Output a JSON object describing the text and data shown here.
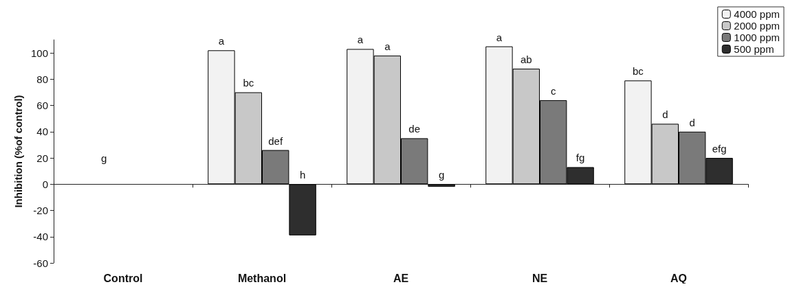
{
  "chart_data": {
    "type": "bar",
    "ylabel": "Inhibition (%of control)",
    "categories": [
      "Control",
      "Methanol",
      "AE",
      "NE",
      "AQ"
    ],
    "series": [
      {
        "name": "4000 ppm",
        "color": "#f2f2f2",
        "values": [
          null,
          102,
          103,
          105,
          79
        ],
        "value_labels": [
          null,
          "a",
          "a",
          "a",
          "bc"
        ]
      },
      {
        "name": "2000 ppm",
        "color": "#c8c8c8",
        "values": [
          null,
          70,
          98,
          88,
          46
        ],
        "value_labels": [
          null,
          "bc",
          "a",
          "ab",
          "d"
        ]
      },
      {
        "name": "1000 ppm",
        "color": "#7a7a7a",
        "values": [
          null,
          26,
          35,
          64,
          40
        ],
        "value_labels": [
          null,
          "def",
          "de",
          "c",
          "d"
        ]
      },
      {
        "name": "500 ppm",
        "color": "#2e2e2e",
        "values": [
          null,
          -39,
          -2,
          13,
          20
        ],
        "value_labels": [
          null,
          "h",
          "g",
          "fg",
          "efg"
        ]
      }
    ],
    "annotations": [
      "g"
    ],
    "ylim": [
      -60,
      110
    ],
    "yticks": [
      -60,
      -40,
      -20,
      0,
      20,
      40,
      60,
      80,
      100
    ],
    "legend": "top right"
  }
}
